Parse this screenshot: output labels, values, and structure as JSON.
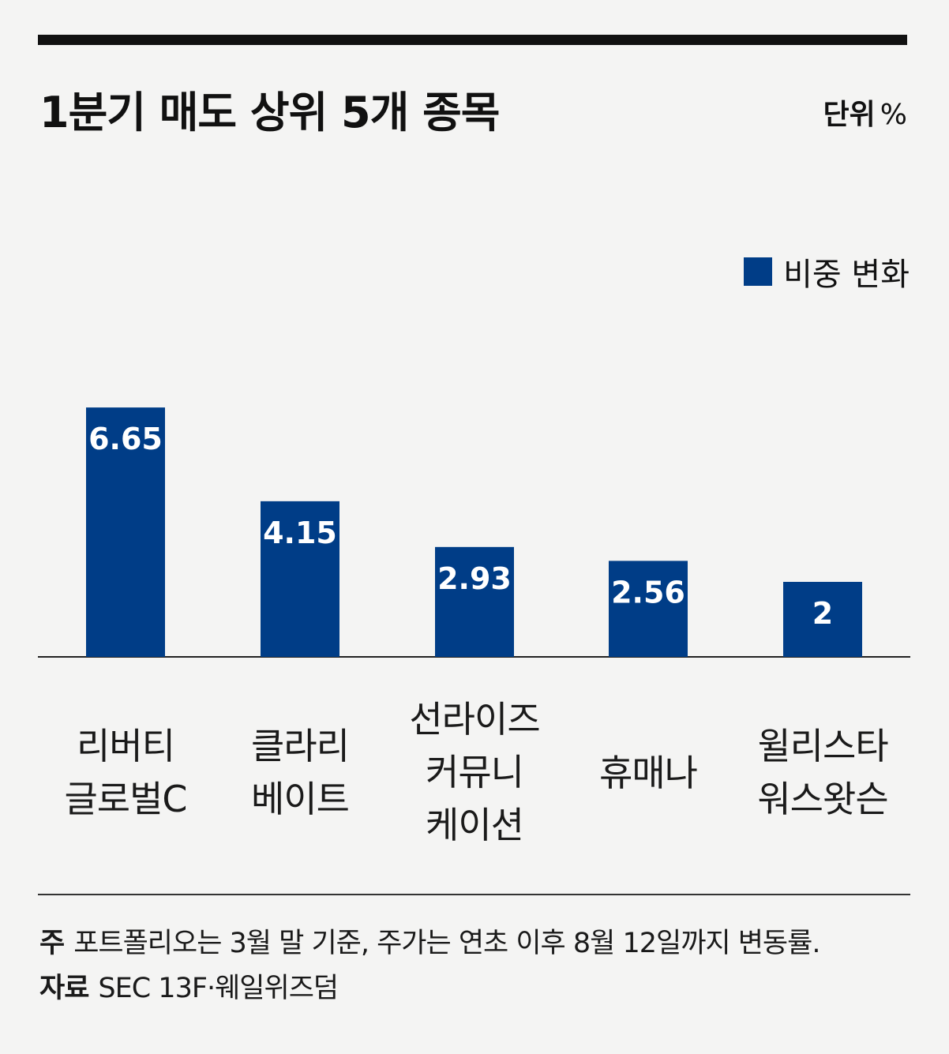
{
  "title": "1분기 매도 상위 5개 종목",
  "unit": {
    "label": "단위",
    "symbol": "%"
  },
  "legend": {
    "label": "비중 변화",
    "color": "#003d87"
  },
  "categories_display": [
    [
      "리버티",
      "글로벌C"
    ],
    [
      "클라리",
      "베이트"
    ],
    [
      "선라이즈",
      "커뮤니",
      "케이션"
    ],
    [
      "휴매나"
    ],
    [
      "윌리스타",
      "워스왓슨"
    ]
  ],
  "chart_data": {
    "type": "bar",
    "categories": [
      "리버티 글로벌C",
      "클라리베이트",
      "선라이즈커뮤니케이션",
      "휴매나",
      "윌리스타워스왓슨"
    ],
    "series": [
      {
        "name": "비중 변화",
        "values": [
          6.65,
          4.15,
          2.93,
          2.56,
          2
        ]
      }
    ],
    "value_labels": [
      "6.65",
      "4.15",
      "2.93",
      "2.56",
      "2"
    ],
    "ylim": [
      0,
      10
    ],
    "grid": false,
    "legend_position": "top-right",
    "bar_color": "#003d87"
  },
  "footnote": {
    "note_label": "주",
    "note_text": "포트폴리오는 3월 말 기준, 주가는 연초 이후 8월 12일까지 변동률.",
    "source_label": "자료",
    "source_text": "SEC 13F·웨일위즈덤"
  }
}
